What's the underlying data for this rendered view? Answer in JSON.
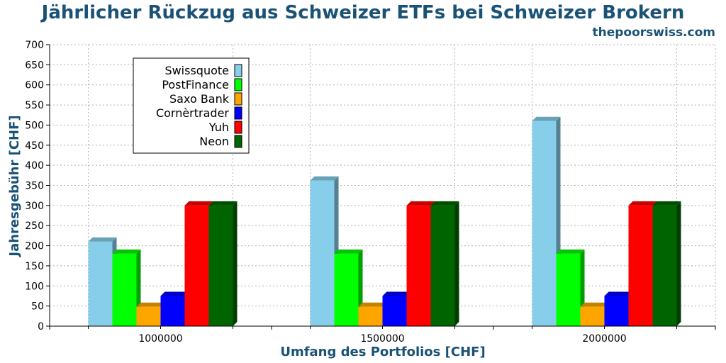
{
  "chart_data": {
    "type": "bar",
    "title": "Jährlicher Rückzug aus Schweizer ETFs bei Schweizer Brokern",
    "source": "thepoorswiss.com",
    "xlabel": "Umfang des Portfolios [CHF]",
    "ylabel": "Jahresgebühr [CHF]",
    "ylim": [
      0,
      700
    ],
    "ytick_step": 50,
    "grid": true,
    "legend_position": "top-left",
    "categories": [
      "1000000",
      "1500000",
      "2000000"
    ],
    "series": [
      {
        "name": "Swissquote",
        "color": "#87ceeb",
        "values": [
          210,
          362,
          510
        ]
      },
      {
        "name": "PostFinance",
        "color": "#00ff00",
        "values": [
          180,
          180,
          180
        ]
      },
      {
        "name": "Saxo Bank",
        "color": "#ffa500",
        "values": [
          48,
          48,
          48
        ]
      },
      {
        "name": "Cornèrtrader",
        "color": "#0000ff",
        "values": [
          75,
          75,
          75
        ]
      },
      {
        "name": "Yuh",
        "color": "#ff0000",
        "values": [
          300,
          300,
          300
        ]
      },
      {
        "name": "Neon",
        "color": "#006400",
        "values": [
          300,
          300,
          300
        ]
      }
    ]
  }
}
